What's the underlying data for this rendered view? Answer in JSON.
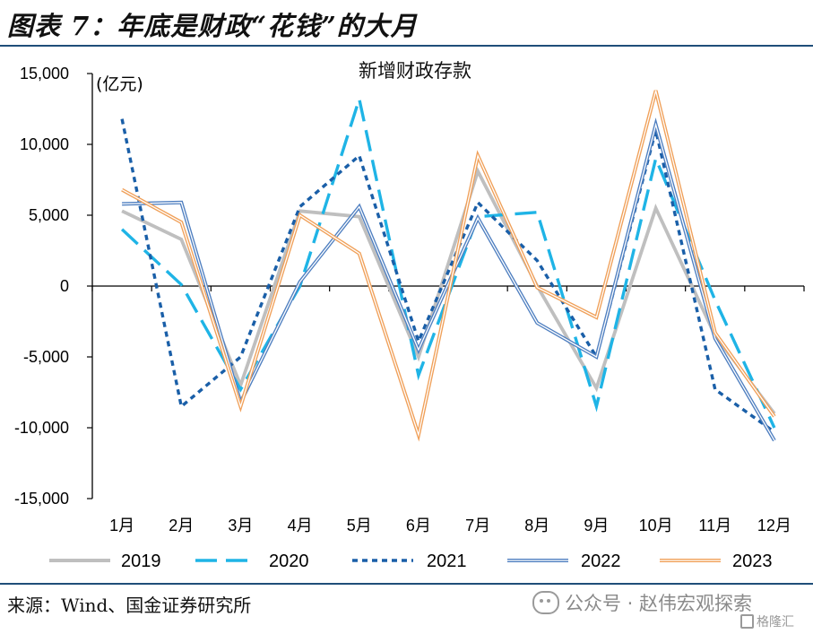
{
  "header": {
    "figure_title": "图表 7：年底是财政“花钱”的大月"
  },
  "footer": {
    "source": "来源：Wind、国金证券研究所",
    "watermark": "公众号 · 赵伟宏观探索",
    "logo": "格隆汇",
    "watermark_icon": "wechat-icon"
  },
  "chart_data": {
    "type": "line",
    "title": "新增财政存款",
    "unit_label": "(亿元)",
    "categories": [
      "1月",
      "2月",
      "3月",
      "4月",
      "5月",
      "6月",
      "7月",
      "8月",
      "9月",
      "10月",
      "11月",
      "12月"
    ],
    "ylim": [
      -15000,
      15000
    ],
    "yticks": [
      15000,
      10000,
      5000,
      0,
      -5000,
      -10000,
      -15000
    ],
    "ytick_labels": [
      "15,000",
      "10,000",
      "5,000",
      "0",
      "-5,000",
      "-10,000",
      "-15,000"
    ],
    "grid": false,
    "legend_position": "bottom",
    "series": [
      {
        "name": "2019",
        "color": "#bfbfbf",
        "style": "solid",
        "values": [
          5300,
          3300,
          -7000,
          5300,
          4900,
          -5000,
          8100,
          0,
          -7200,
          5500,
          -3500,
          -9000
        ]
      },
      {
        "name": "2020",
        "color": "#1fb4e6",
        "style": "longdash",
        "values": [
          4000,
          100,
          -7300,
          0,
          13200,
          -6300,
          4900,
          5200,
          -8500,
          9000,
          -1000,
          -10000
        ]
      },
      {
        "name": "2021",
        "color": "#1a5fa8",
        "style": "shortdash",
        "values": [
          11800,
          -8500,
          -5000,
          5600,
          9200,
          -3900,
          5900,
          1800,
          -5000,
          11000,
          -7300,
          -10300
        ]
      },
      {
        "name": "2022",
        "color": "#4f7fc0",
        "style": "double",
        "values": [
          5800,
          5900,
          -8200,
          300,
          5600,
          -4500,
          4800,
          -2600,
          -5000,
          11400,
          -3700,
          -10900
        ]
      },
      {
        "name": "2023",
        "color": "#f0a059",
        "style": "double",
        "values": [
          6800,
          4500,
          -8500,
          5000,
          2300,
          -10500,
          9200,
          -100,
          -2200,
          13800,
          -3300,
          -9200
        ]
      }
    ]
  }
}
